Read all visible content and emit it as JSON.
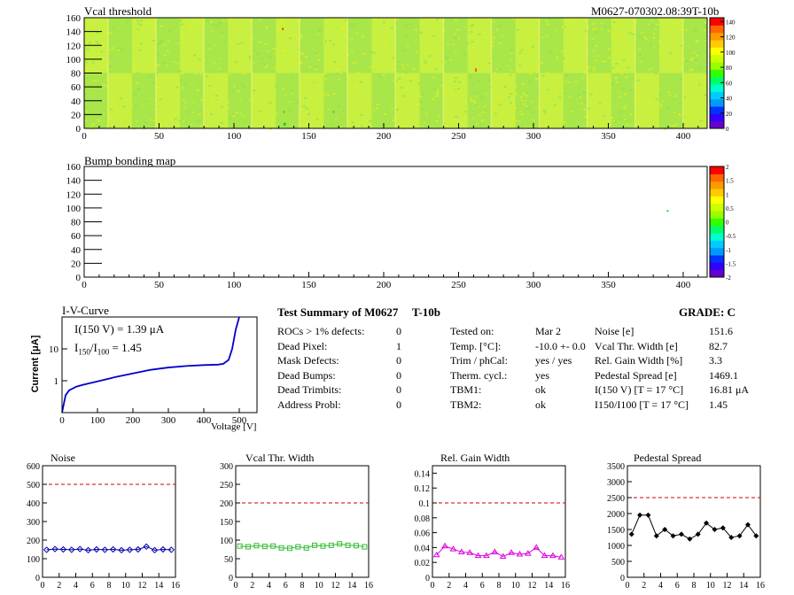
{
  "header": {
    "map1_title": "Vcal threshold",
    "map1_id": "M0627-070302.08:39T-10b",
    "map2_title": "Bump bonding map"
  },
  "iv": {
    "title": "I-V-Curve",
    "line1": "I(150 V) = 1.39 μA",
    "ratio_label": "I",
    "ratio_sub1": "150",
    "ratio_mid": "/I",
    "ratio_sub2": "100",
    "ratio_val": "=  1.45",
    "ylabel": "Current [μA]",
    "xlabel": "Voltage [V]",
    "yticks": [
      "10",
      "1"
    ],
    "xticks": [
      "0",
      "100",
      "200",
      "300",
      "400",
      "500"
    ]
  },
  "summary": {
    "title": "Test Summary of M0627",
    "tag": "T-10b",
    "grade": "GRADE:  C",
    "left_rows": [
      {
        "label": "ROCs > 1% defects:",
        "value": "0"
      },
      {
        "label": "Dead Pixel:",
        "value": "1"
      },
      {
        "label": "Mask Defects:",
        "value": "0"
      },
      {
        "label": "Dead Bumps:",
        "value": "0"
      },
      {
        "label": "Dead Trimbits:",
        "value": "0"
      },
      {
        "label": "Address Probl:",
        "value": "0"
      }
    ],
    "mid_rows": [
      {
        "label": "Tested on:",
        "value": "Mar 2"
      },
      {
        "label": "Temp. [°C]:",
        "value": "-10.0 +- 0.0"
      },
      {
        "label": "Trim / phCal:",
        "value": "yes / yes"
      },
      {
        "label": "Therm. cycl.:",
        "value": "yes"
      },
      {
        "label": "TBM1:",
        "value": "ok"
      },
      {
        "label": "TBM2:",
        "value": "ok"
      }
    ],
    "right_rows": [
      {
        "label": "Noise [e]",
        "value": "151.6"
      },
      {
        "label": "Vcal Thr. Width [e]",
        "value": "82.7"
      },
      {
        "label": "Rel. Gain Width [%]",
        "value": "3.3"
      },
      {
        "label": "Pedestal Spread [e]",
        "value": "1469.1"
      },
      {
        "label": "I(150 V) [T = 17 °C]",
        "value": "16.81 μA"
      },
      {
        "label": "I150/I100  [T = 17 °C]",
        "value": "1.45"
      }
    ]
  },
  "chart_data": [
    {
      "type": "heatmap",
      "title": "Vcal threshold",
      "xlim": [
        0,
        416
      ],
      "ylim": [
        0,
        160
      ],
      "xticks": [
        0,
        50,
        100,
        150,
        200,
        250,
        300,
        350,
        400
      ],
      "yticks": [
        0,
        20,
        40,
        60,
        80,
        100,
        120,
        140,
        160
      ],
      "zlim": [
        0,
        145
      ],
      "zticks": [
        0,
        20,
        40,
        60,
        80,
        100,
        120,
        140
      ],
      "colorbar_colors": [
        "#6600cc",
        "#3300ff",
        "#0033ff",
        "#0099ff",
        "#00ccff",
        "#00ffcc",
        "#00ff66",
        "#33ff00",
        "#99ff00",
        "#ccff00",
        "#ffff00",
        "#ffcc00",
        "#ff9900",
        "#ff6600",
        "#ff0000"
      ]
    },
    {
      "type": "heatmap",
      "title": "Bump bonding map",
      "xlim": [
        0,
        416
      ],
      "ylim": [
        0,
        160
      ],
      "xticks": [
        0,
        50,
        100,
        150,
        200,
        250,
        300,
        350,
        400
      ],
      "yticks": [
        0,
        20,
        40,
        60,
        80,
        100,
        120,
        140,
        160
      ],
      "zlim": [
        -2,
        2
      ],
      "zticks": [
        "2",
        "1.5",
        "1",
        "0.5",
        "0",
        "-0.5",
        "-1",
        "-1.5",
        "-2"
      ]
    },
    {
      "type": "line",
      "title": "I-V-Curve",
      "xlabel": "Voltage [V]",
      "ylabel": "Current [μA]",
      "yscale": "log",
      "xlim": [
        0,
        550
      ],
      "x": [
        0,
        10,
        20,
        40,
        60,
        100,
        150,
        200,
        250,
        300,
        350,
        400,
        440,
        455,
        470,
        480,
        490,
        500
      ],
      "y": [
        0.1,
        0.35,
        0.5,
        0.65,
        0.75,
        0.95,
        1.3,
        1.7,
        2.2,
        2.6,
        2.9,
        3.1,
        3.2,
        3.4,
        4.5,
        10,
        40,
        100
      ]
    },
    {
      "type": "line",
      "title": "Noise",
      "xlim": [
        0,
        16
      ],
      "ylim": [
        0,
        600
      ],
      "xticks": [
        0,
        2,
        4,
        6,
        8,
        10,
        12,
        14,
        16
      ],
      "yticks": [
        0,
        100,
        200,
        300,
        400,
        500,
        600
      ],
      "limit": 500,
      "color": "#0000aa",
      "x": [
        0.5,
        1.5,
        2.5,
        3.5,
        4.5,
        5.5,
        6.5,
        7.5,
        8.5,
        9.5,
        10.5,
        11.5,
        12.5,
        13.5,
        14.5,
        15.5
      ],
      "y": [
        148,
        152,
        150,
        148,
        152,
        146,
        150,
        148,
        150,
        146,
        148,
        150,
        165,
        146,
        150,
        148
      ]
    },
    {
      "type": "line",
      "title": "Vcal Thr. Width",
      "xlim": [
        0,
        16
      ],
      "ylim": [
        0,
        300
      ],
      "xticks": [
        0,
        2,
        4,
        6,
        8,
        10,
        12,
        14,
        16
      ],
      "yticks": [
        0,
        50,
        100,
        150,
        200,
        250,
        300
      ],
      "limit": 200,
      "color": "#33bb33",
      "x": [
        0.5,
        1.5,
        2.5,
        3.5,
        4.5,
        5.5,
        6.5,
        7.5,
        8.5,
        9.5,
        10.5,
        11.5,
        12.5,
        13.5,
        14.5,
        15.5
      ],
      "y": [
        84,
        82,
        85,
        83,
        84,
        79,
        78,
        82,
        79,
        86,
        84,
        86,
        90,
        86,
        85,
        82
      ]
    },
    {
      "type": "line",
      "title": "Rel. Gain Width",
      "xlim": [
        0,
        16
      ],
      "ylim": [
        0,
        0.15
      ],
      "xticks": [
        0,
        2,
        4,
        6,
        8,
        10,
        12,
        14,
        16
      ],
      "yticks": [
        0,
        0.02,
        0.04,
        0.06,
        0.08,
        0.1,
        0.12,
        0.14
      ],
      "limit": 0.1,
      "color": "#dd00dd",
      "x": [
        0.5,
        1.5,
        2.5,
        3.5,
        4.5,
        5.5,
        6.5,
        7.5,
        8.5,
        9.5,
        10.5,
        11.5,
        12.5,
        13.5,
        14.5,
        15.5
      ],
      "y": [
        0.03,
        0.042,
        0.038,
        0.034,
        0.033,
        0.029,
        0.029,
        0.034,
        0.028,
        0.033,
        0.031,
        0.032,
        0.04,
        0.029,
        0.029,
        0.027
      ]
    },
    {
      "type": "line",
      "title": "Pedestal Spread",
      "xlim": [
        0,
        16
      ],
      "ylim": [
        0,
        3500
      ],
      "xticks": [
        0,
        2,
        4,
        6,
        8,
        10,
        12,
        14,
        16
      ],
      "yticks": [
        0,
        500,
        1000,
        1500,
        2000,
        2500,
        3000,
        3500
      ],
      "limit": 2500,
      "color": "#000000",
      "x": [
        0.5,
        1.5,
        2.5,
        3.5,
        4.5,
        5.5,
        6.5,
        7.5,
        8.5,
        9.5,
        10.5,
        11.5,
        12.5,
        13.5,
        14.5,
        15.5
      ],
      "y": [
        1350,
        1950,
        1950,
        1300,
        1500,
        1300,
        1350,
        1200,
        1350,
        1700,
        1500,
        1550,
        1250,
        1300,
        1650,
        1300
      ]
    }
  ]
}
